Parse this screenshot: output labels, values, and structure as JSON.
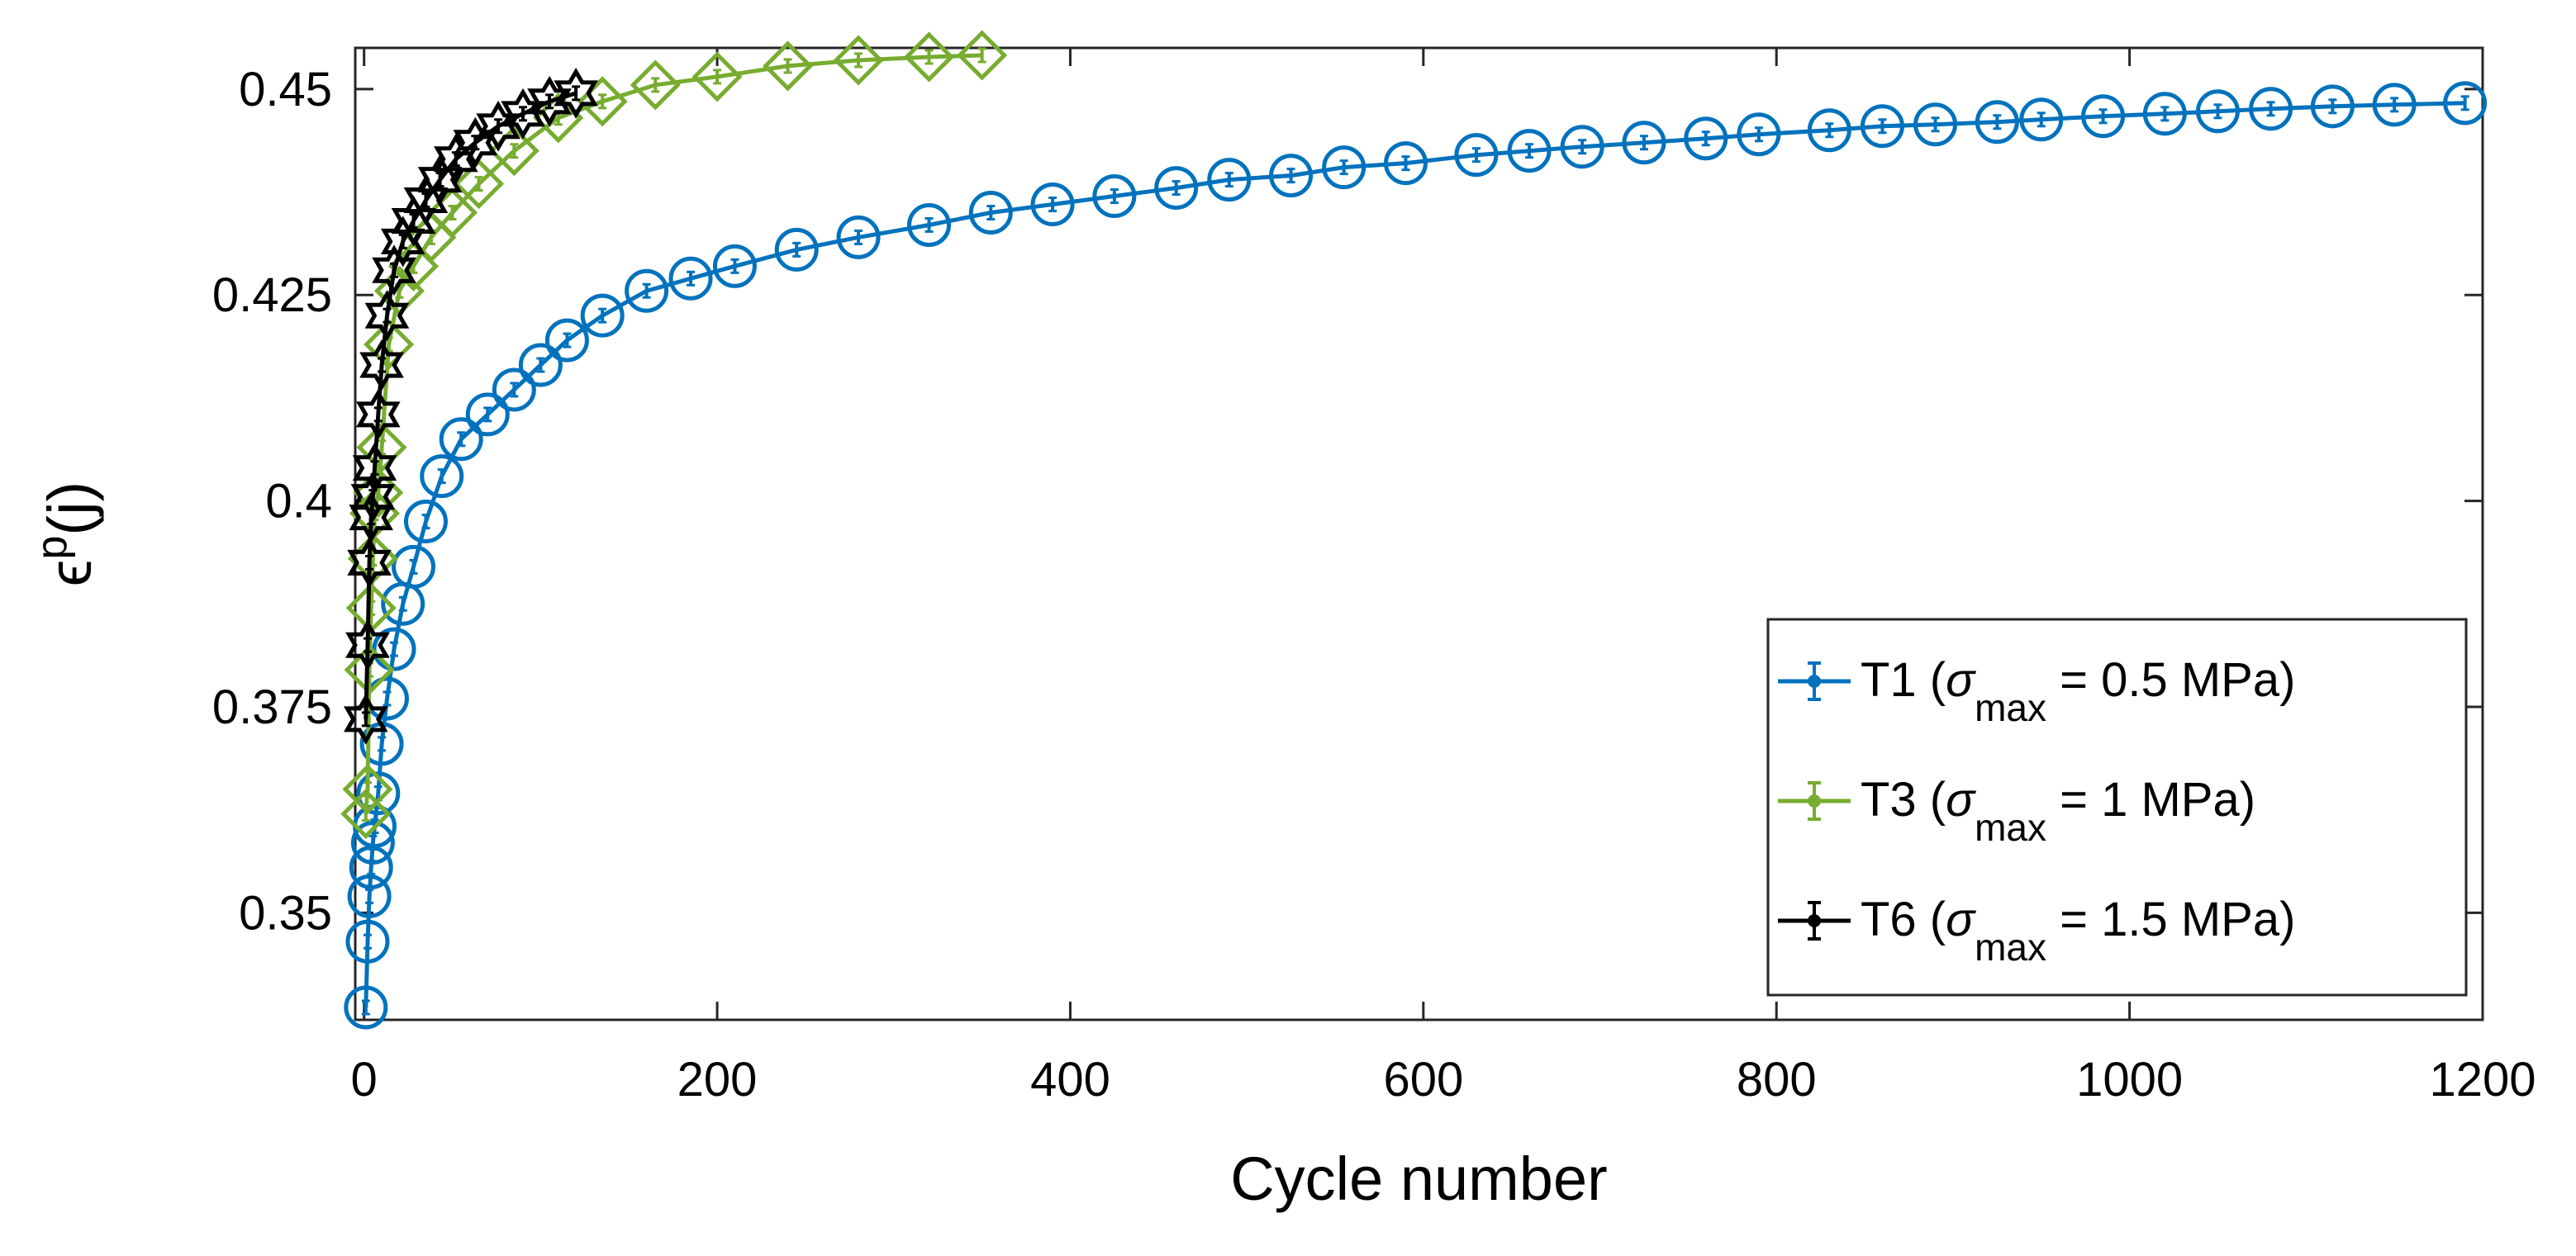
{
  "chart_data": {
    "type": "line",
    "title": "",
    "xlabel": "Cycle number",
    "ylabel": {
      "base": "ϵ",
      "sup": "p",
      "rest": "(j)"
    },
    "xlim": [
      -5,
      1200
    ],
    "ylim": [
      0.337,
      0.455
    ],
    "xticks": [
      0,
      200,
      400,
      600,
      800,
      1000,
      1200
    ],
    "yticks": [
      0.35,
      0.375,
      0.4,
      0.425,
      0.45
    ],
    "ytick_labels": [
      "0.35",
      "0.375",
      "0.4",
      "0.425",
      "0.45"
    ],
    "xtick_labels": [
      "0",
      "200",
      "400",
      "600",
      "800",
      "1000",
      "1200"
    ],
    "grid": false,
    "legend_position": "lower-right",
    "series": [
      {
        "name": "T1 (σmax = 0.5 MPa)",
        "legend": {
          "pre": "T1 (",
          "sym": "σ",
          "sub": "max",
          "post": " = 0.5 MPa)"
        },
        "color": "#0072BD",
        "marker": "circle",
        "x": [
          1,
          2,
          3,
          4,
          5,
          6,
          8,
          10,
          13,
          17,
          22,
          28,
          35,
          44,
          55,
          70,
          85,
          100,
          115,
          135,
          160,
          185,
          210,
          245,
          280,
          320,
          355,
          390,
          425,
          460,
          490,
          525,
          555,
          590,
          630,
          660,
          690,
          725,
          760,
          790,
          830,
          860,
          890,
          925,
          950,
          985,
          1020,
          1050,
          1080,
          1115,
          1150,
          1190
        ],
        "y": [
          0.3385,
          0.3465,
          0.352,
          0.3555,
          0.3585,
          0.3605,
          0.3645,
          0.3705,
          0.376,
          0.382,
          0.3875,
          0.392,
          0.3975,
          0.403,
          0.4075,
          0.4105,
          0.4135,
          0.4165,
          0.4195,
          0.4225,
          0.4255,
          0.427,
          0.4285,
          0.4305,
          0.432,
          0.4335,
          0.435,
          0.436,
          0.437,
          0.438,
          0.439,
          0.4395,
          0.4405,
          0.441,
          0.442,
          0.4425,
          0.443,
          0.4435,
          0.444,
          0.4445,
          0.445,
          0.4455,
          0.4457,
          0.446,
          0.4463,
          0.4467,
          0.447,
          0.4473,
          0.4476,
          0.4479,
          0.4481,
          0.4483
        ]
      },
      {
        "name": "T3 (σmax = 1 MPa)",
        "legend": {
          "pre": "T3 (",
          "sym": "σ",
          "sub": "max",
          "post": " = 1 MPa)"
        },
        "color": "#77AC30",
        "marker": "diamond",
        "x": [
          1,
          2,
          3,
          4,
          5,
          6,
          8,
          10,
          14,
          20,
          28,
          38,
          50,
          65,
          85,
          110,
          135,
          165,
          200,
          240,
          280,
          320,
          350
        ],
        "y": [
          0.362,
          0.365,
          0.3795,
          0.387,
          0.393,
          0.3985,
          0.401,
          0.4065,
          0.419,
          0.4255,
          0.4285,
          0.432,
          0.435,
          0.4385,
          0.4425,
          0.4465,
          0.4485,
          0.4505,
          0.4515,
          0.4528,
          0.4535,
          0.4539,
          0.4541
        ]
      },
      {
        "name": "T6 (σmax = 1.5 MPa)",
        "legend": {
          "pre": "T6 (",
          "sym": "σ",
          "sub": "max",
          "post": " = 1.5 MPa)"
        },
        "color": "#000000",
        "marker": "hexagram",
        "x": [
          1,
          2,
          3,
          4,
          5,
          6,
          8,
          10,
          13,
          17,
          22,
          28,
          35,
          43,
          52,
          63,
          76,
          90,
          105,
          120
        ],
        "y": [
          0.3735,
          0.3825,
          0.3925,
          0.398,
          0.4005,
          0.404,
          0.4105,
          0.4165,
          0.4225,
          0.428,
          0.4315,
          0.434,
          0.4365,
          0.439,
          0.4415,
          0.4435,
          0.4455,
          0.447,
          0.4485,
          0.4495
        ]
      }
    ]
  }
}
